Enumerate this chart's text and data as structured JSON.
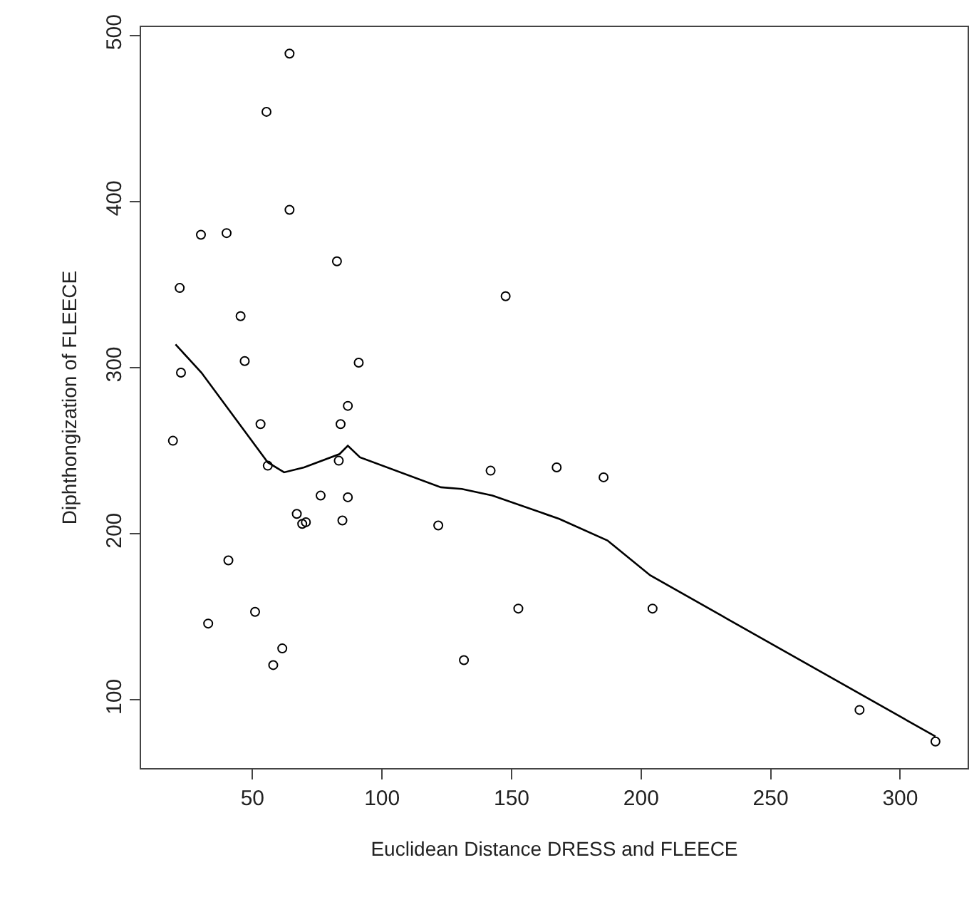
{
  "chart_data": {
    "type": "scatter",
    "xlabel": "Euclidean Distance DRESS and FLEECE",
    "ylabel": "Diphthongization of FLEECE",
    "xlim": [
      7,
      326
    ],
    "ylim": [
      59,
      505
    ],
    "xticks": [
      50,
      100,
      150,
      200,
      250,
      300
    ],
    "yticks": [
      100,
      200,
      300,
      400,
      500
    ],
    "series": [
      {
        "marker": "circle",
        "color": "#000000",
        "x": [
          64.3,
          55.4,
          64.3,
          30.1,
          40,
          82.6,
          21.9,
          147.7,
          45.4,
          47,
          91,
          22.4,
          86.8,
          53.1,
          84,
          19.3,
          55.9,
          83.3,
          141.9,
          167.4,
          185.5,
          76.3,
          86.8,
          67.1,
          69.2,
          70.6,
          84.7,
          121.7,
          40.7,
          51,
          32.9,
          152.6,
          204.4,
          61.5,
          58,
          131.6,
          284.3,
          313.6
        ],
        "values": [
          489,
          454,
          395,
          380,
          381,
          364,
          348,
          343,
          331,
          304,
          303,
          297,
          277,
          266,
          266,
          256,
          241,
          244,
          238,
          240,
          234,
          223,
          222,
          212,
          206,
          207,
          208,
          205,
          184,
          153,
          146,
          155,
          155,
          131,
          121,
          124,
          94,
          75
        ]
      },
      {
        "type": "line",
        "marker": "none",
        "line_style": "solid",
        "color": "#000000",
        "x": [
          20.3,
          30.3,
          55.9,
          62.2,
          69.9,
          83.6,
          86.8,
          91.5,
          122.7,
          130.8,
          142.6,
          168.4,
          187,
          203.5,
          313.6
        ],
        "values": [
          314,
          297,
          243,
          237,
          240,
          248,
          253,
          246,
          228,
          227,
          223,
          209,
          196,
          175,
          78
        ]
      }
    ]
  }
}
